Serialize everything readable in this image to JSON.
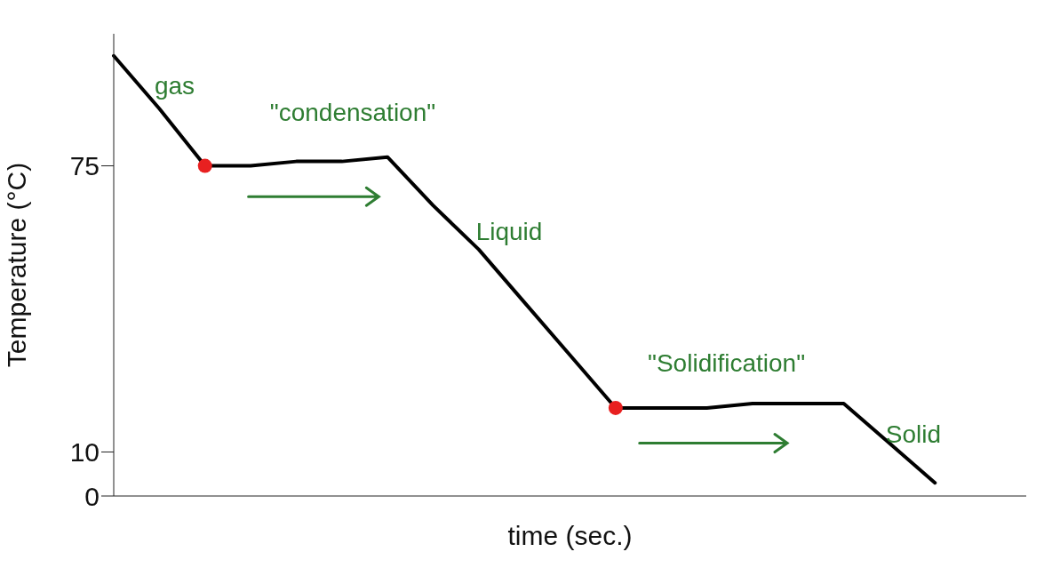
{
  "chart_data": {
    "type": "line",
    "xlabel": "time (sec.)",
    "ylabel": "Temperature (°C)",
    "categories": [
      null,
      null,
      null,
      null,
      null,
      null,
      null,
      null,
      null,
      null,
      null,
      null,
      null,
      null,
      null,
      null,
      null,
      null,
      null,
      null,
      null
    ],
    "series": [
      {
        "color": "#000000",
        "values": [
          100,
          88,
          75,
          75,
          76,
          76,
          77,
          66,
          56,
          44,
          32,
          20,
          20,
          20,
          21,
          21,
          21,
          12,
          3,
          null,
          null
        ]
      },
      {
        "type": "scatter",
        "color": "#e82020",
        "marker": "circle",
        "values": [
          null,
          null,
          75,
          null,
          null,
          null,
          null,
          null,
          null,
          null,
          null,
          20,
          null,
          null,
          null,
          null,
          null,
          null,
          null,
          null,
          null
        ]
      }
    ],
    "ylim": [
      0,
      105
    ],
    "yticks": [
      0,
      10,
      75
    ],
    "annotations": [
      "gas",
      "\"condensation\"",
      "Liquid",
      "\"Solidification\"",
      "Solid"
    ]
  }
}
